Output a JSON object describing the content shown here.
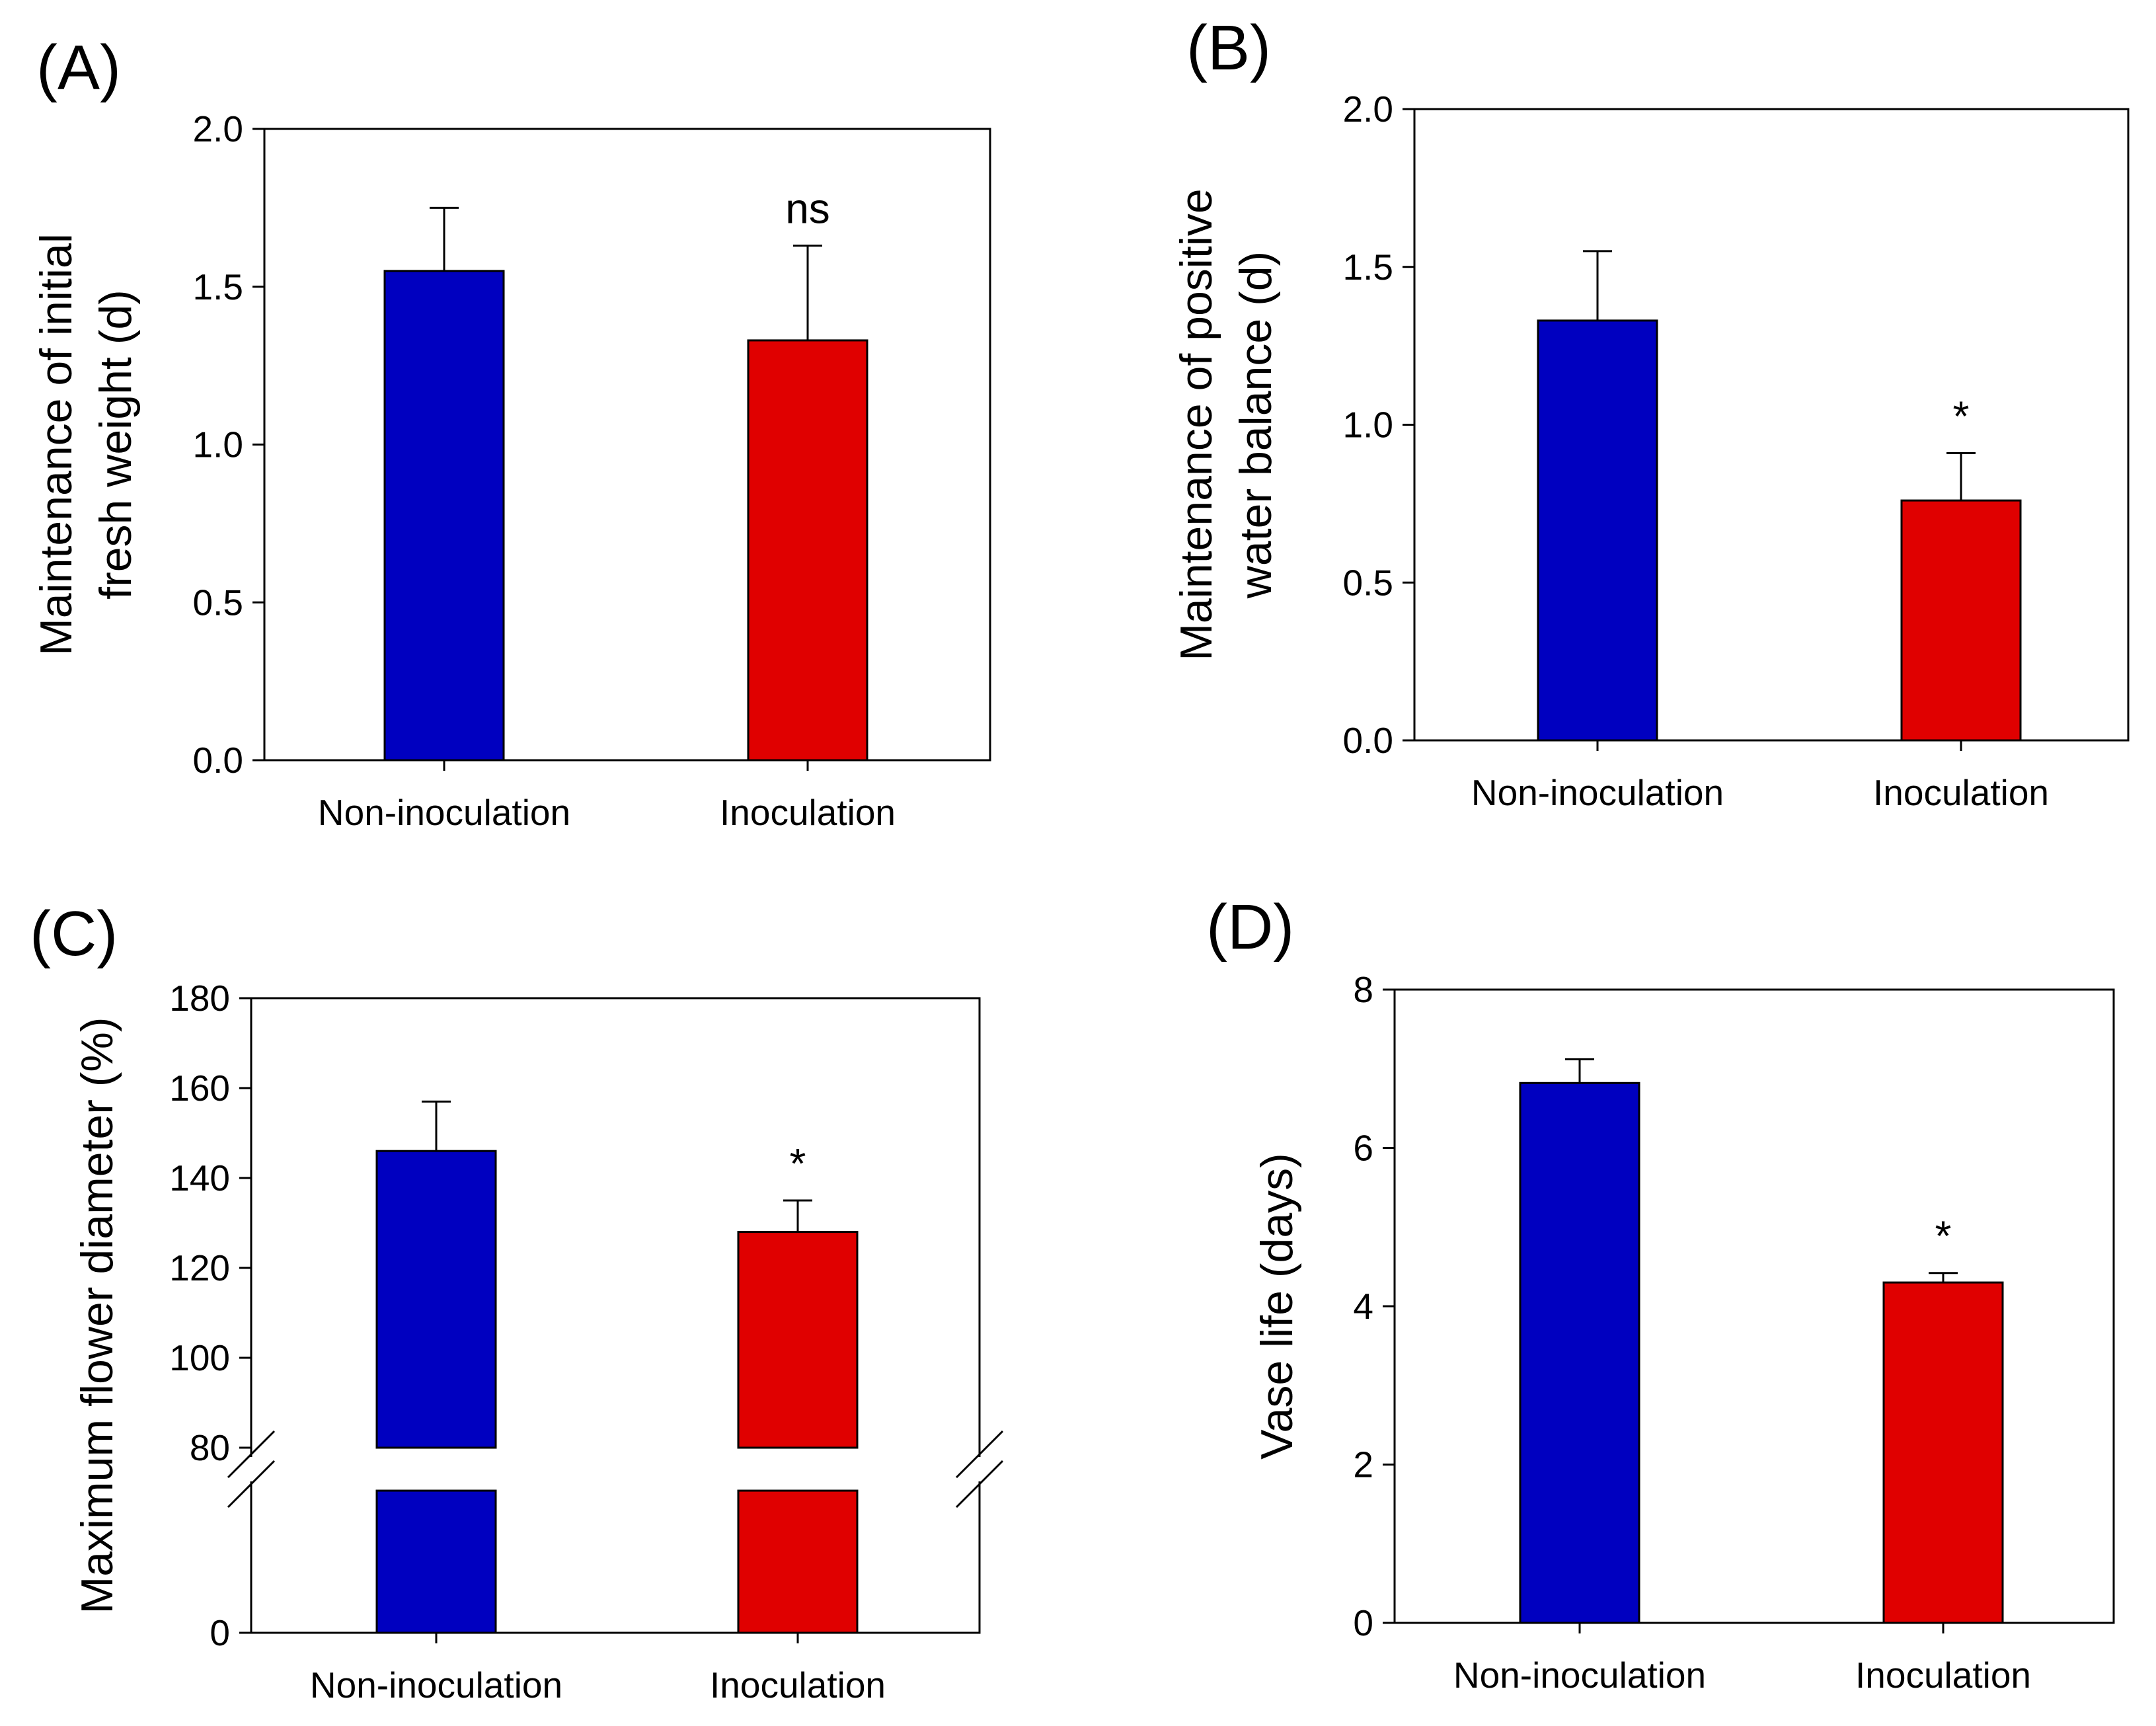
{
  "colors": {
    "non_inoculation": "#0000c0",
    "inoculation": "#e00000"
  },
  "chart_data": [
    {
      "panel": "(A)",
      "type": "bar",
      "categories": [
        "Non-inoculation",
        "Inoculation"
      ],
      "values": [
        1.55,
        1.33
      ],
      "errors": [
        0.2,
        0.3
      ],
      "annotations": [
        "",
        "ns"
      ],
      "ylabel_lines": [
        "Maintenance of initial",
        "fresh weight (d)"
      ],
      "ylim": [
        0,
        2.0
      ],
      "yticks": [
        "0.0",
        "0.5",
        "1.0",
        "1.5",
        "2.0"
      ],
      "ytick_values": [
        0,
        0.5,
        1.0,
        1.5,
        2.0
      ],
      "grid": false
    },
    {
      "panel": "(B)",
      "type": "bar",
      "categories": [
        "Non-inoculation",
        "Inoculation"
      ],
      "values": [
        1.33,
        0.76
      ],
      "errors": [
        0.22,
        0.15
      ],
      "annotations": [
        "",
        "*"
      ],
      "ylabel_lines": [
        "Maintenance of positive",
        "water balance (d)"
      ],
      "ylim": [
        0,
        2.0
      ],
      "yticks": [
        "0.0",
        "0.5",
        "1.0",
        "1.5",
        "2.0"
      ],
      "ytick_values": [
        0,
        0.5,
        1.0,
        1.5,
        2.0
      ],
      "grid": false
    },
    {
      "panel": "(C)",
      "type": "bar",
      "categories": [
        "Non-inoculation",
        "Inoculation"
      ],
      "values": [
        146,
        128
      ],
      "errors": [
        11,
        7
      ],
      "annotations": [
        "",
        "*"
      ],
      "ylabel_lines": [
        "Maximum flower diameter (%)"
      ],
      "ylim": [
        0,
        180
      ],
      "axis_break": [
        true
      ],
      "yticks": [
        "0",
        "80",
        "100",
        "120",
        "140",
        "160",
        "180"
      ],
      "ytick_values": [
        0,
        80,
        100,
        120,
        140,
        160,
        180
      ],
      "grid": false
    },
    {
      "panel": "(D)",
      "type": "bar",
      "categories": [
        "Non-inoculation",
        "Inoculation"
      ],
      "values": [
        6.82,
        4.3
      ],
      "errors": [
        0.3,
        0.12
      ],
      "annotations": [
        "",
        "*"
      ],
      "ylabel_lines": [
        "Vase life (days)"
      ],
      "ylim": [
        0,
        8
      ],
      "yticks": [
        "0",
        "2",
        "4",
        "6",
        "8"
      ],
      "ytick_values": [
        0,
        2,
        4,
        6,
        8
      ],
      "grid": false
    }
  ]
}
